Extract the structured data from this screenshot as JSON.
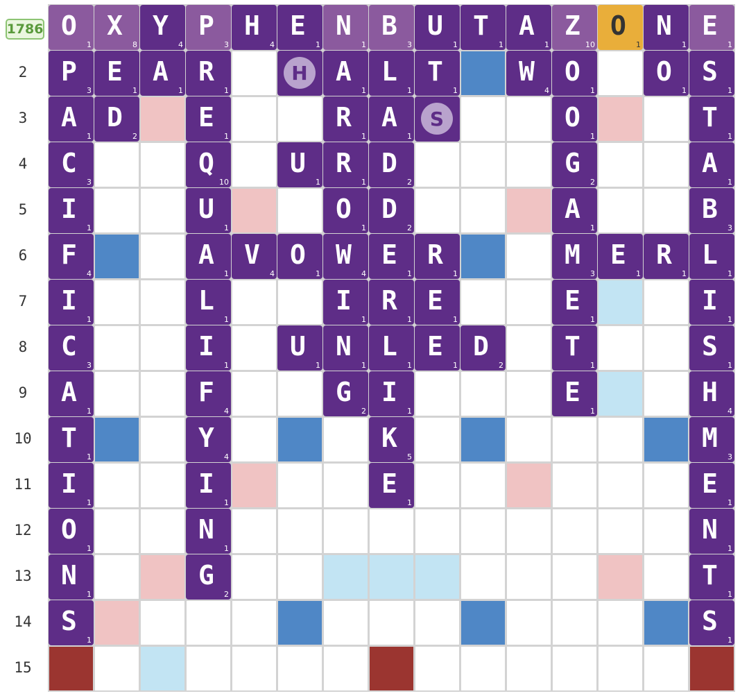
{
  "score": "1786",
  "row_labels": [
    "",
    "2",
    "3",
    "4",
    "5",
    "6",
    "7",
    "8",
    "9",
    "10",
    "11",
    "12",
    "13",
    "14",
    "15"
  ],
  "premium_squares": {
    "double_letter": [
      [
        6,
        2
      ],
      [
        8,
        2
      ],
      [
        8,
        6
      ],
      [
        8,
        12
      ],
      [
        11,
        3
      ],
      [
        12,
        6
      ],
      [
        12,
        8
      ],
      [
        6,
        12
      ],
      [
        2,
        14
      ],
      [
        12,
        12
      ],
      [
        6,
        8
      ],
      [
        7,
        12
      ],
      [
        11,
        8
      ]
    ],
    "triple_letter": [
      [
        1,
        5
      ],
      [
        5,
        1
      ],
      [
        5,
        5
      ],
      [
        5,
        9
      ],
      [
        9,
        1
      ],
      [
        9,
        5
      ],
      [
        9,
        9
      ],
      [
        13,
        9
      ],
      [
        9,
        13
      ],
      [
        5,
        13
      ],
      [
        1,
        9
      ],
      [
        13,
        13
      ]
    ],
    "double_word": [
      [
        2,
        2
      ],
      [
        12,
        2
      ],
      [
        4,
        4
      ],
      [
        10,
        4
      ],
      [
        2,
        12
      ],
      [
        4,
        10
      ],
      [
        10,
        10
      ],
      [
        12,
        12
      ],
      [
        1,
        13
      ],
      [
        13,
        1
      ]
    ],
    "triple_word": [
      [
        0,
        14
      ],
      [
        7,
        14
      ],
      [
        14,
        14
      ]
    ]
  },
  "tiles": [
    {
      "r": 0,
      "c": 0,
      "l": "O",
      "p": "1",
      "style": "light"
    },
    {
      "r": 0,
      "c": 1,
      "l": "X",
      "p": "8",
      "style": "light"
    },
    {
      "r": 0,
      "c": 2,
      "l": "Y",
      "p": "4"
    },
    {
      "r": 0,
      "c": 3,
      "l": "P",
      "p": "3",
      "style": "light"
    },
    {
      "r": 0,
      "c": 4,
      "l": "H",
      "p": "4"
    },
    {
      "r": 0,
      "c": 5,
      "l": "E",
      "p": "1"
    },
    {
      "r": 0,
      "c": 6,
      "l": "N",
      "p": "1",
      "style": "light"
    },
    {
      "r": 0,
      "c": 7,
      "l": "B",
      "p": "3",
      "style": "light"
    },
    {
      "r": 0,
      "c": 8,
      "l": "U",
      "p": "1"
    },
    {
      "r": 0,
      "c": 9,
      "l": "T",
      "p": "1"
    },
    {
      "r": 0,
      "c": 10,
      "l": "A",
      "p": "1"
    },
    {
      "r": 0,
      "c": 11,
      "l": "Z",
      "p": "10",
      "style": "light"
    },
    {
      "r": 0,
      "c": 12,
      "l": "O",
      "p": "1",
      "style": "last"
    },
    {
      "r": 0,
      "c": 13,
      "l": "N",
      "p": "1"
    },
    {
      "r": 0,
      "c": 14,
      "l": "E",
      "p": "1",
      "style": "light"
    },
    {
      "r": 1,
      "c": 0,
      "l": "P",
      "p": "3"
    },
    {
      "r": 1,
      "c": 1,
      "l": "E",
      "p": "1"
    },
    {
      "r": 1,
      "c": 2,
      "l": "A",
      "p": "1"
    },
    {
      "r": 1,
      "c": 3,
      "l": "R",
      "p": "1"
    },
    {
      "r": 1,
      "c": 5,
      "l": "H",
      "p": "",
      "style": "blank"
    },
    {
      "r": 1,
      "c": 6,
      "l": "A",
      "p": "1"
    },
    {
      "r": 1,
      "c": 7,
      "l": "L",
      "p": "1"
    },
    {
      "r": 1,
      "c": 8,
      "l": "T",
      "p": "1"
    },
    {
      "r": 1,
      "c": 10,
      "l": "W",
      "p": "4"
    },
    {
      "r": 1,
      "c": 11,
      "l": "O",
      "p": "1"
    },
    {
      "r": 1,
      "c": 13,
      "l": "O",
      "p": "1"
    },
    {
      "r": 1,
      "c": 14,
      "l": "S",
      "p": "1"
    },
    {
      "r": 2,
      "c": 0,
      "l": "A",
      "p": "1"
    },
    {
      "r": 2,
      "c": 1,
      "l": "D",
      "p": "2"
    },
    {
      "r": 2,
      "c": 3,
      "l": "E",
      "p": "1"
    },
    {
      "r": 2,
      "c": 6,
      "l": "R",
      "p": "1"
    },
    {
      "r": 2,
      "c": 7,
      "l": "A",
      "p": "1"
    },
    {
      "r": 2,
      "c": 8,
      "l": "S",
      "p": "",
      "style": "blank"
    },
    {
      "r": 2,
      "c": 11,
      "l": "O",
      "p": "1"
    },
    {
      "r": 2,
      "c": 14,
      "l": "T",
      "p": "1"
    },
    {
      "r": 3,
      "c": 0,
      "l": "C",
      "p": "3"
    },
    {
      "r": 3,
      "c": 3,
      "l": "Q",
      "p": "10"
    },
    {
      "r": 3,
      "c": 5,
      "l": "U",
      "p": "1"
    },
    {
      "r": 3,
      "c": 6,
      "l": "R",
      "p": "1"
    },
    {
      "r": 3,
      "c": 7,
      "l": "D",
      "p": "2"
    },
    {
      "r": 3,
      "c": 11,
      "l": "G",
      "p": "2"
    },
    {
      "r": 3,
      "c": 14,
      "l": "A",
      "p": "1"
    },
    {
      "r": 4,
      "c": 0,
      "l": "I",
      "p": "1"
    },
    {
      "r": 4,
      "c": 3,
      "l": "U",
      "p": "1"
    },
    {
      "r": 4,
      "c": 6,
      "l": "O",
      "p": "1"
    },
    {
      "r": 4,
      "c": 7,
      "l": "D",
      "p": "2"
    },
    {
      "r": 4,
      "c": 11,
      "l": "A",
      "p": "1"
    },
    {
      "r": 4,
      "c": 14,
      "l": "B",
      "p": "3"
    },
    {
      "r": 5,
      "c": 0,
      "l": "F",
      "p": "4"
    },
    {
      "r": 5,
      "c": 3,
      "l": "A",
      "p": "1"
    },
    {
      "r": 5,
      "c": 4,
      "l": "V",
      "p": "4"
    },
    {
      "r": 5,
      "c": 5,
      "l": "O",
      "p": "1"
    },
    {
      "r": 5,
      "c": 6,
      "l": "W",
      "p": "4"
    },
    {
      "r": 5,
      "c": 7,
      "l": "E",
      "p": "1"
    },
    {
      "r": 5,
      "c": 8,
      "l": "R",
      "p": "1"
    },
    {
      "r": 5,
      "c": 11,
      "l": "M",
      "p": "3"
    },
    {
      "r": 5,
      "c": 12,
      "l": "E",
      "p": "1"
    },
    {
      "r": 5,
      "c": 13,
      "l": "R",
      "p": "1"
    },
    {
      "r": 5,
      "c": 14,
      "l": "L",
      "p": "1"
    },
    {
      "r": 6,
      "c": 0,
      "l": "I",
      "p": "1"
    },
    {
      "r": 6,
      "c": 3,
      "l": "L",
      "p": "1"
    },
    {
      "r": 6,
      "c": 6,
      "l": "I",
      "p": "1"
    },
    {
      "r": 6,
      "c": 7,
      "l": "R",
      "p": "1"
    },
    {
      "r": 6,
      "c": 8,
      "l": "E",
      "p": "1"
    },
    {
      "r": 6,
      "c": 11,
      "l": "E",
      "p": "1"
    },
    {
      "r": 6,
      "c": 14,
      "l": "I",
      "p": "1"
    },
    {
      "r": 7,
      "c": 0,
      "l": "C",
      "p": "3"
    },
    {
      "r": 7,
      "c": 3,
      "l": "I",
      "p": "1"
    },
    {
      "r": 7,
      "c": 5,
      "l": "U",
      "p": "1"
    },
    {
      "r": 7,
      "c": 6,
      "l": "N",
      "p": "1"
    },
    {
      "r": 7,
      "c": 7,
      "l": "L",
      "p": "1"
    },
    {
      "r": 7,
      "c": 8,
      "l": "E",
      "p": "1"
    },
    {
      "r": 7,
      "c": 9,
      "l": "D",
      "p": "2"
    },
    {
      "r": 7,
      "c": 11,
      "l": "T",
      "p": "1"
    },
    {
      "r": 7,
      "c": 14,
      "l": "S",
      "p": "1"
    },
    {
      "r": 8,
      "c": 0,
      "l": "A",
      "p": "1"
    },
    {
      "r": 8,
      "c": 3,
      "l": "F",
      "p": "4"
    },
    {
      "r": 8,
      "c": 6,
      "l": "G",
      "p": "2"
    },
    {
      "r": 8,
      "c": 7,
      "l": "I",
      "p": "1"
    },
    {
      "r": 8,
      "c": 11,
      "l": "E",
      "p": "1"
    },
    {
      "r": 8,
      "c": 14,
      "l": "H",
      "p": "4"
    },
    {
      "r": 9,
      "c": 0,
      "l": "T",
      "p": "1"
    },
    {
      "r": 9,
      "c": 3,
      "l": "Y",
      "p": "4"
    },
    {
      "r": 9,
      "c": 7,
      "l": "K",
      "p": "5"
    },
    {
      "r": 9,
      "c": 14,
      "l": "M",
      "p": "3"
    },
    {
      "r": 10,
      "c": 0,
      "l": "I",
      "p": "1"
    },
    {
      "r": 10,
      "c": 3,
      "l": "I",
      "p": "1"
    },
    {
      "r": 10,
      "c": 7,
      "l": "E",
      "p": "1"
    },
    {
      "r": 10,
      "c": 14,
      "l": "E",
      "p": "1"
    },
    {
      "r": 11,
      "c": 0,
      "l": "O",
      "p": "1"
    },
    {
      "r": 11,
      "c": 3,
      "l": "N",
      "p": "1"
    },
    {
      "r": 11,
      "c": 14,
      "l": "N",
      "p": "1"
    },
    {
      "r": 12,
      "c": 0,
      "l": "N",
      "p": "1"
    },
    {
      "r": 12,
      "c": 3,
      "l": "G",
      "p": "2"
    },
    {
      "r": 12,
      "c": 14,
      "l": "T",
      "p": "1"
    },
    {
      "r": 13,
      "c": 0,
      "l": "S",
      "p": "1"
    },
    {
      "r": 13,
      "c": 14,
      "l": "S",
      "p": "1"
    }
  ]
}
